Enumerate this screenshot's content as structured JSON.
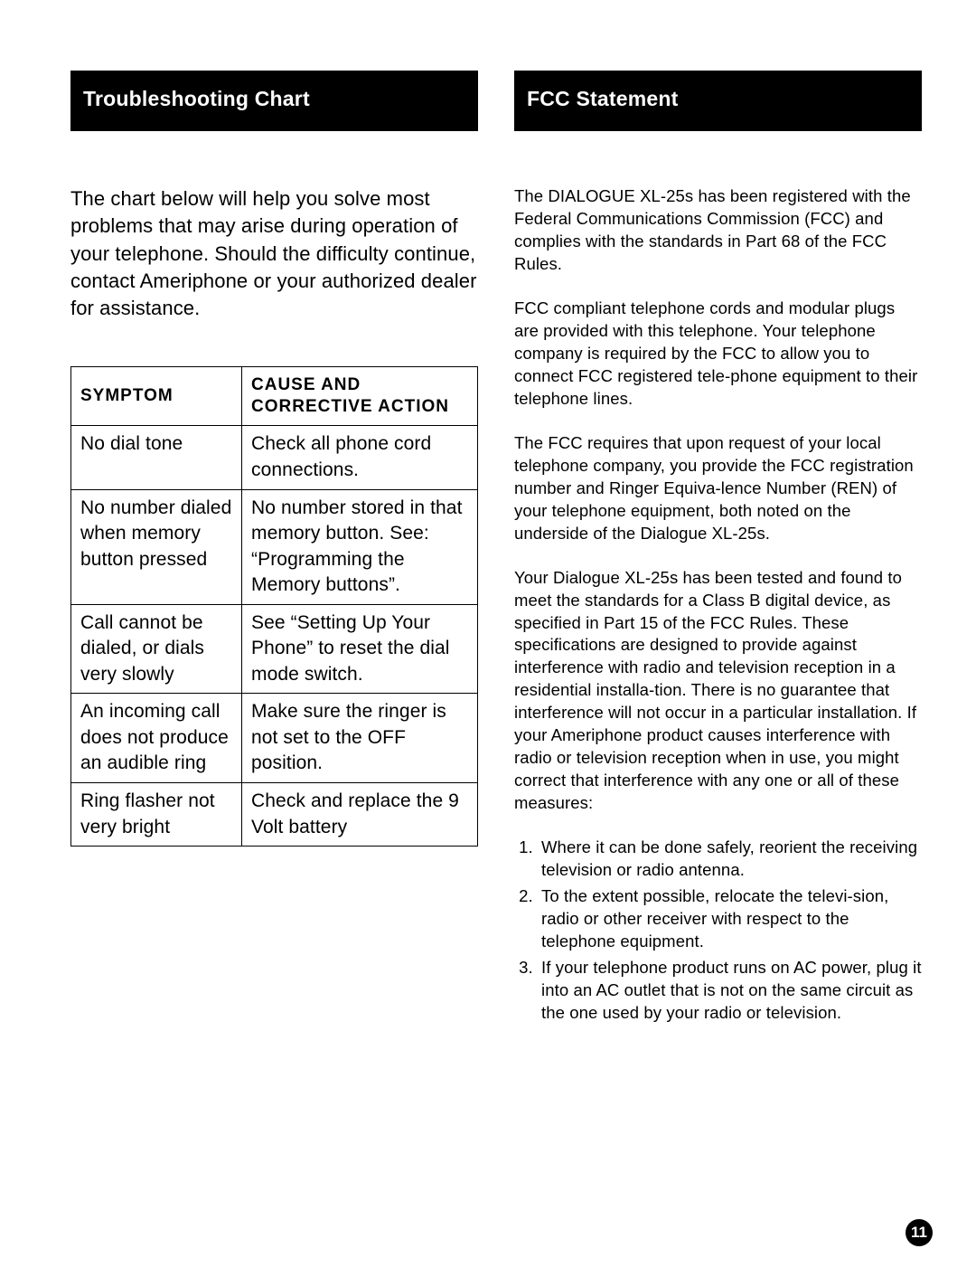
{
  "left": {
    "header": "Troubleshooting Chart",
    "intro": "The chart below will help you solve most problems that may arise during operation of your telephone. Should the difficulty continue, contact Ameriphone or your authorized dealer for assistance.",
    "table": {
      "col1_header": "SYMPTOM",
      "col2_header": "CAUSE AND CORRECTIVE ACTION",
      "rows": [
        {
          "symptom": "No dial tone",
          "action": "Check all phone cord connections."
        },
        {
          "symptom": "No number dialed when memory button pressed",
          "action": "No number stored in that memory button. See: “Programming the Memory buttons”."
        },
        {
          "symptom": "Call cannot be dialed, or dials very slowly",
          "action": "See “Setting Up Your Phone” to reset the dial mode switch."
        },
        {
          "symptom": "An incoming call does not produce an audible ring",
          "action": "Make sure the ringer is not set to the OFF position."
        },
        {
          "symptom": "Ring flasher not very bright",
          "action": "Check and replace the 9 Volt battery"
        }
      ]
    }
  },
  "right": {
    "header": "FCC Statement",
    "paragraphs": [
      "The DIALOGUE XL-25s has been registered with the Federal Communications Commission (FCC) and complies with the standards in Part 68 of the FCC Rules.",
      "FCC compliant telephone cords and modular plugs are provided with this telephone. Your telephone company is required by the FCC to allow you to connect FCC registered tele-phone equipment to their telephone lines.",
      "The FCC requires that upon request of your local telephone company, you provide the FCC registration number and Ringer Equiva-lence Number (REN) of your telephone equipment, both noted on the underside of the Dialogue XL-25s.",
      "Your Dialogue XL-25s has been tested and found to meet the standards for a Class B digital device, as specified in Part 15 of the FCC Rules. These specifications are designed to provide against interference with radio and television reception in a residential installa-tion. There is no guarantee that interference will not occur in a particular installation. If your Ameriphone product causes interference with radio or television reception when in use, you might correct that interference with any one or all of these measures:"
    ],
    "list": [
      "Where it can be done safely, reorient the receiving television or radio antenna.",
      "To the extent possible, relocate the televi-sion, radio or other receiver with respect to the telephone equipment.",
      "If your telephone product runs on AC power, plug it into an AC outlet that is not on the same circuit as the one used by your radio or television."
    ]
  },
  "page_number": "11"
}
